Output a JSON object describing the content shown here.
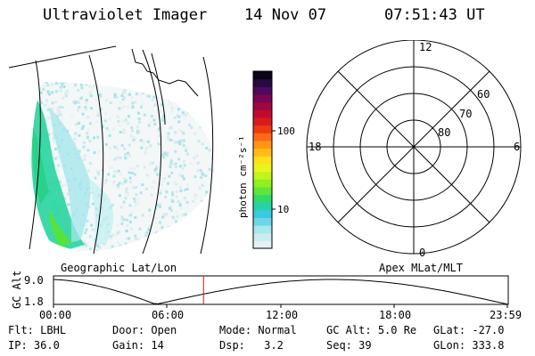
{
  "header": {
    "instrument": "Ultraviolet Imager",
    "date": "14 Nov 07",
    "time": "07:51:43 UT"
  },
  "geo_panel": {
    "caption": "Geographic Lat/Lon"
  },
  "colorbar": {
    "label": "photon cm⁻²s⁻¹",
    "tick_100": "100",
    "tick_10": "10",
    "colors": [
      "#e6f0f5",
      "#c8eef0",
      "#a6e8ec",
      "#6fd6e6",
      "#39c9e0",
      "#26d3a8",
      "#2fdc6a",
      "#5fe63a",
      "#8ff01e",
      "#c0f51c",
      "#e9f41b",
      "#ffe11a",
      "#ffbd17",
      "#ff9616",
      "#ff6a14",
      "#ef3b12",
      "#d81c1c",
      "#bf0c2c",
      "#a0063f",
      "#7a0554",
      "#4e0a5c",
      "#26093f",
      "#0a0515"
    ]
  },
  "polar_panel": {
    "caption": "Apex MLat/MLT",
    "mlt_12": "12",
    "mlt_18": "18",
    "mlt_6": "6",
    "mlt_0": "0",
    "lat_60": "60",
    "lat_70": "70",
    "lat_80": "80"
  },
  "orbit_plot": {
    "ylabel": "GC Alt",
    "ytick_top": "9.0",
    "ytick_bottom": "1.8",
    "xticks": [
      "00:00",
      "06:00",
      "12:00",
      "18:00",
      "23:59"
    ],
    "current_time_fraction": 0.33
  },
  "info": {
    "flt_label": "Flt:",
    "flt_value": "LBHL",
    "door_label": "Door:",
    "door_value": "Open",
    "mode_label": "Mode:",
    "mode_value": "Normal",
    "gcalt_label": "GC Alt:",
    "gcalt_value": "5.0 Re",
    "glat_label": "GLat:",
    "glat_value": "-27.0",
    "ip_label": "IP:",
    "ip_value": "36.0",
    "gain_label": "Gain:",
    "gain_value": "14",
    "dsp_label": "Dsp:",
    "dsp_value": "3.2",
    "seq_label": "Seq:",
    "seq_value": "39",
    "glon_label": "GLon:",
    "glon_value": "333.8"
  }
}
